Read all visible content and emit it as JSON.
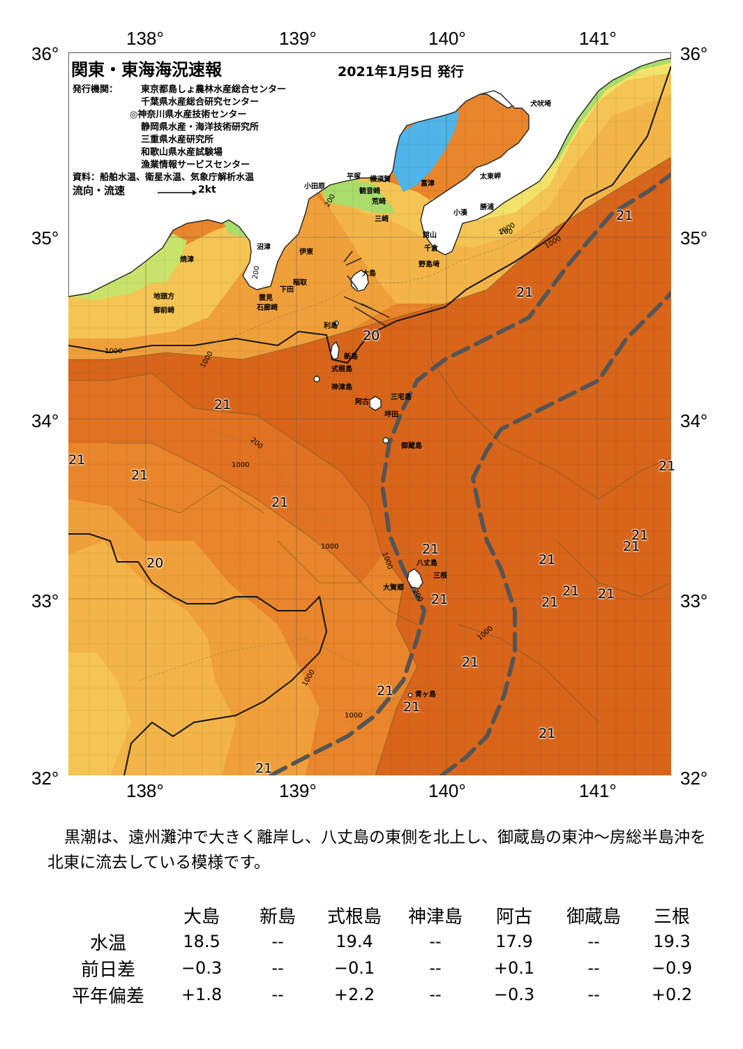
{
  "header": {
    "title": "関東・東海海況速報",
    "issued": "2021年1月5日 発行",
    "organizations_label": "発行機関：",
    "organizations": [
      "東京都島しょ農林水産総合センター",
      "千葉県水産総合研究センター",
      "◎神奈川県水産技術センター",
      "静岡県水産・海洋技術研究所",
      "三重県水産研究所",
      "和歌山県水産試験場",
      "漁業情報サービスセンター"
    ],
    "source": "資料：船舶水温、衛星水温、気象庁解析水温",
    "flow_label": "流向・流速",
    "flow_scale": "2kt"
  },
  "axes": {
    "lon_top": [
      "138°",
      "139°",
      "140°",
      "141°"
    ],
    "lon_bottom": [
      "138°",
      "139°",
      "140°",
      "141°"
    ],
    "lat_left": [
      "36°",
      "35°",
      "34°",
      "33°",
      "32°"
    ],
    "lat_right": [
      "36°",
      "35°",
      "34°",
      "33°",
      "32°"
    ]
  },
  "places": [
    "犬吠埼",
    "太東岬",
    "勝浦",
    "小湊",
    "富津",
    "横須賀",
    "観音崎",
    "荒崎",
    "平塚",
    "小田原",
    "三崎",
    "館山",
    "千倉",
    "野島埼",
    "沼津",
    "伊東",
    "焼津",
    "稲取",
    "下田",
    "雲見",
    "石廊崎",
    "地頭方",
    "御前崎",
    "大島",
    "利島",
    "新島",
    "式根島",
    "神津島",
    "三宅島",
    "阿古",
    "坪田",
    "御蔵島",
    "八丈島",
    "三根",
    "大賀郷",
    "青ヶ島"
  ],
  "temperature_labels": [
    "21",
    "21",
    "21",
    "21",
    "21",
    "20",
    "20",
    "21",
    "21",
    "21",
    "21",
    "21",
    "21",
    "21",
    "21",
    "21",
    "21",
    "21",
    "21",
    "21",
    "21",
    "21",
    "21"
  ],
  "contour_labels": [
    "200",
    "1000",
    "200",
    "1000",
    "200",
    "1000",
    "1000",
    "200",
    "1000",
    "1000",
    "1000",
    "1000",
    "200",
    "1000",
    "1000"
  ],
  "colors": {
    "sea_warm": "#e9852a",
    "sea_warmest": "#d8651a",
    "sea_mid": "#f0a03a",
    "sea_cool": "#f5c553",
    "coast_yellow": "#f4e36a",
    "coast_green": "#8fd86a",
    "bay_blue": "#4fb4e8",
    "land": "#ffffff",
    "kuroshio_axis": "#555555"
  },
  "summary": "黒潮は、遠州灘沖で大きく離岸し、八丈島の東側を北上し、御蔵島の東沖～房総半島沖を北東に流去している模様です。",
  "table": {
    "columns": [
      "大島",
      "新島",
      "式根島",
      "神津島",
      "阿古",
      "御蔵島",
      "三根"
    ],
    "rows": [
      {
        "label": "水温",
        "values": [
          "18.5",
          "--",
          "19.4",
          "--",
          "17.9",
          "--",
          "19.3"
        ]
      },
      {
        "label": "前日差",
        "values": [
          "−0.3",
          "--",
          "−0.1",
          "--",
          "+0.1",
          "--",
          "−0.9"
        ]
      },
      {
        "label": "平年偏差",
        "values": [
          "+1.8",
          "--",
          "+2.2",
          "--",
          "−0.3",
          "--",
          "+0.2"
        ]
      }
    ]
  }
}
